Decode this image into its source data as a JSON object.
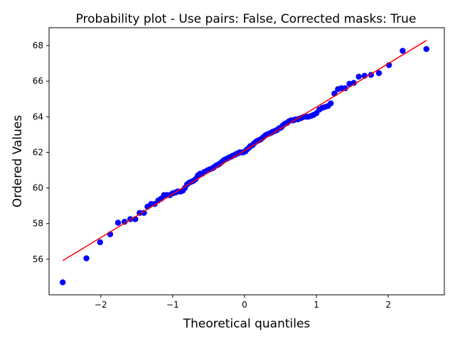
{
  "chart_data": {
    "type": "scatter",
    "title": "Probability plot - Use pairs: False, Corrected masks: True",
    "xlabel": "Theoretical quantiles",
    "ylabel": "Ordered Values",
    "xlim": [
      -2.72,
      2.78
    ],
    "ylim": [
      54.0,
      69.0
    ],
    "xticks": [
      -2,
      -1,
      0,
      1,
      2
    ],
    "xtick_labels": [
      "−2",
      "−1",
      "0",
      "1",
      "2"
    ],
    "yticks": [
      56,
      58,
      60,
      62,
      64,
      66,
      68
    ],
    "ytick_labels": [
      "56",
      "58",
      "60",
      "62",
      "64",
      "66",
      "68"
    ],
    "grid": false,
    "colors": {
      "points": "#0000ff",
      "fit_line": "#ff0000",
      "axes": "#000000"
    },
    "fit_line": {
      "x": [
        -2.53,
        2.53
      ],
      "y": [
        55.92,
        68.28
      ]
    },
    "points": [
      [
        -2.53,
        54.7
      ],
      [
        -2.2,
        56.05
      ],
      [
        -2.01,
        56.95
      ],
      [
        -1.87,
        57.4
      ],
      [
        -1.76,
        58.05
      ],
      [
        -1.67,
        58.1
      ],
      [
        -1.59,
        58.25
      ],
      [
        -1.52,
        58.25
      ],
      [
        -1.46,
        58.6
      ],
      [
        -1.4,
        58.6
      ],
      [
        -1.35,
        58.95
      ],
      [
        -1.3,
        59.1
      ],
      [
        -1.25,
        59.1
      ],
      [
        -1.2,
        59.3
      ],
      [
        -1.16,
        59.4
      ],
      [
        -1.12,
        59.6
      ],
      [
        -1.08,
        59.6
      ],
      [
        -1.04,
        59.6
      ],
      [
        -1.0,
        59.7
      ],
      [
        -0.96,
        59.75
      ],
      [
        -0.93,
        59.8
      ],
      [
        -0.89,
        59.8
      ],
      [
        -0.86,
        59.85
      ],
      [
        -0.83,
        60.0
      ],
      [
        -0.8,
        60.2
      ],
      [
        -0.77,
        60.3
      ],
      [
        -0.74,
        60.35
      ],
      [
        -0.71,
        60.4
      ],
      [
        -0.68,
        60.5
      ],
      [
        -0.65,
        60.7
      ],
      [
        -0.62,
        60.8
      ],
      [
        -0.59,
        60.8
      ],
      [
        -0.56,
        60.9
      ],
      [
        -0.53,
        60.95
      ],
      [
        -0.51,
        61.0
      ],
      [
        -0.48,
        61.05
      ],
      [
        -0.45,
        61.1
      ],
      [
        -0.43,
        61.15
      ],
      [
        -0.4,
        61.25
      ],
      [
        -0.37,
        61.3
      ],
      [
        -0.35,
        61.35
      ],
      [
        -0.32,
        61.45
      ],
      [
        -0.29,
        61.55
      ],
      [
        -0.27,
        61.6
      ],
      [
        -0.24,
        61.65
      ],
      [
        -0.22,
        61.7
      ],
      [
        -0.19,
        61.75
      ],
      [
        -0.17,
        61.8
      ],
      [
        -0.14,
        61.85
      ],
      [
        -0.12,
        61.9
      ],
      [
        -0.09,
        61.95
      ],
      [
        -0.07,
        62.0
      ],
      [
        -0.04,
        62.0
      ],
      [
        -0.02,
        62.0
      ],
      [
        0.01,
        62.05
      ],
      [
        0.03,
        62.15
      ],
      [
        0.06,
        62.25
      ],
      [
        0.08,
        62.35
      ],
      [
        0.11,
        62.4
      ],
      [
        0.13,
        62.5
      ],
      [
        0.16,
        62.6
      ],
      [
        0.18,
        62.65
      ],
      [
        0.21,
        62.7
      ],
      [
        0.23,
        62.75
      ],
      [
        0.26,
        62.85
      ],
      [
        0.29,
        62.95
      ],
      [
        0.31,
        63.0
      ],
      [
        0.34,
        63.05
      ],
      [
        0.37,
        63.1
      ],
      [
        0.39,
        63.15
      ],
      [
        0.42,
        63.2
      ],
      [
        0.45,
        63.25
      ],
      [
        0.48,
        63.35
      ],
      [
        0.51,
        63.4
      ],
      [
        0.53,
        63.5
      ],
      [
        0.56,
        63.6
      ],
      [
        0.59,
        63.65
      ],
      [
        0.62,
        63.75
      ],
      [
        0.65,
        63.8
      ],
      [
        0.68,
        63.8
      ],
      [
        0.71,
        63.85
      ],
      [
        0.74,
        63.85
      ],
      [
        0.77,
        63.9
      ],
      [
        0.8,
        63.95
      ],
      [
        0.83,
        64.0
      ],
      [
        0.86,
        64.0
      ],
      [
        0.89,
        64.0
      ],
      [
        0.93,
        64.05
      ],
      [
        0.96,
        64.1
      ],
      [
        1.0,
        64.2
      ],
      [
        1.04,
        64.4
      ],
      [
        1.08,
        64.5
      ],
      [
        1.12,
        64.55
      ],
      [
        1.16,
        64.6
      ],
      [
        1.2,
        64.75
      ],
      [
        1.25,
        65.3
      ],
      [
        1.3,
        65.55
      ],
      [
        1.35,
        65.6
      ],
      [
        1.4,
        65.6
      ],
      [
        1.46,
        65.85
      ],
      [
        1.52,
        65.9
      ],
      [
        1.59,
        66.25
      ],
      [
        1.67,
        66.3
      ],
      [
        1.76,
        66.35
      ],
      [
        1.87,
        66.45
      ],
      [
        2.01,
        66.9
      ],
      [
        2.2,
        67.7
      ],
      [
        2.53,
        67.8
      ]
    ]
  }
}
